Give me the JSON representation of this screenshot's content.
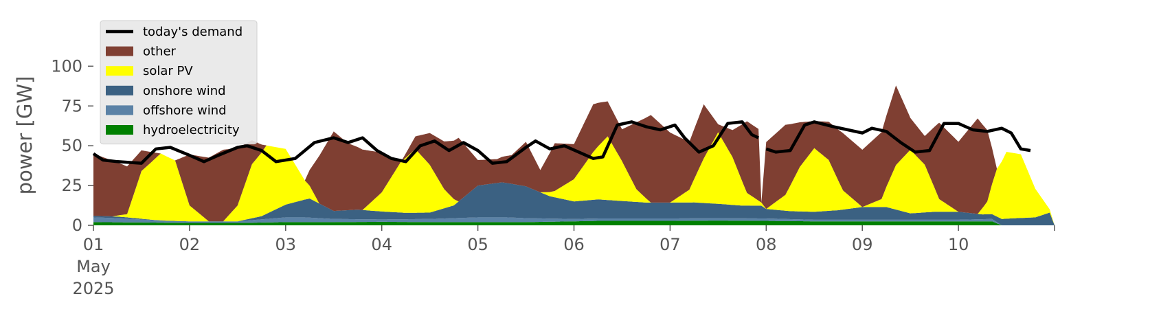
{
  "chart_data": {
    "type": "area",
    "title": "",
    "xlabel": "",
    "ylabel": "power [GW]",
    "xlim": [
      0,
      10
    ],
    "ylim": [
      0,
      120
    ],
    "x_ticks": [
      0,
      1,
      2,
      3,
      4,
      5,
      6,
      7,
      8,
      9,
      10
    ],
    "x_tick_labels": [
      "01",
      "02",
      "03",
      "04",
      "05",
      "06",
      "07",
      "08",
      "09",
      "10",
      ""
    ],
    "x_tick_sublabels": [
      "May",
      "2025"
    ],
    "y_ticks": [
      0,
      25,
      50,
      75,
      100
    ],
    "y_tick_labels": [
      "0",
      "25",
      "50",
      "75",
      "100"
    ],
    "grid": false,
    "legend_position": "top-left",
    "x_unit": "days since 2025-05-01 00:00",
    "stacking_order": [
      "hydroelectricity",
      "offshore wind",
      "onshore wind",
      "solar PV",
      "other"
    ],
    "series": [
      {
        "name": "hydroelectricity",
        "color": "#008000",
        "x": [
          0,
          0.5,
          1,
          1.5,
          2,
          2.5,
          3,
          3.5,
          4,
          4.5,
          5,
          5.25,
          5.5,
          6,
          6.5,
          7,
          7.5,
          8,
          8.5,
          9,
          9.35,
          9.45,
          10
        ],
        "values": [
          2,
          1.8,
          1.5,
          1.5,
          2,
          2,
          2.2,
          2,
          2,
          2,
          2.5,
          2.8,
          2.8,
          2.8,
          3,
          2.8,
          2.5,
          2.5,
          2.5,
          2.5,
          2.5,
          0,
          0
        ]
      },
      {
        "name": "offshore wind",
        "color": "#5b82a6",
        "x": [
          0,
          0.3,
          0.6,
          1,
          1.5,
          2,
          2.2,
          2.5,
          3,
          3.5,
          4,
          4.3,
          4.5,
          5,
          5.5,
          6,
          6.5,
          7,
          7.5,
          8,
          8.3,
          8.6,
          9,
          9.35,
          9.45,
          10
        ],
        "values": [
          3,
          2.5,
          1.5,
          1,
          1,
          3,
          3,
          2,
          1.5,
          2,
          3,
          3,
          2.5,
          1.5,
          1.5,
          1.5,
          1.5,
          1.5,
          1,
          1,
          1,
          1,
          1,
          1.5,
          0,
          0
        ]
      },
      {
        "name": "onshore wind",
        "color": "#3b6182",
        "x": [
          0,
          0.25,
          0.5,
          0.75,
          1,
          1.25,
          1.5,
          1.75,
          2,
          2.25,
          2.5,
          2.75,
          3,
          3.25,
          3.5,
          3.75,
          4,
          4.25,
          4.5,
          4.75,
          5,
          5.25,
          5.5,
          5.75,
          6,
          6.25,
          6.5,
          6.75,
          6.95,
          7,
          7.25,
          7.5,
          7.75,
          8,
          8.25,
          8.5,
          8.75,
          9,
          9.25,
          9.35,
          9.45,
          9.6,
          9.8,
          9.95,
          10
        ],
        "values": [
          1,
          1,
          0.5,
          0,
          0,
          0,
          0,
          2,
          8,
          12,
          5,
          6,
          5,
          4,
          4,
          8,
          20,
          22,
          20,
          14,
          11,
          12,
          11,
          10,
          10,
          10,
          9,
          8,
          8,
          6,
          5,
          5,
          6,
          8,
          8,
          4,
          5,
          5,
          3,
          3,
          4,
          4.5,
          5,
          8,
          0
        ]
      },
      {
        "name": "solar PV",
        "color": "#ffff00",
        "x": [
          0,
          0.2,
          0.35,
          0.5,
          0.7,
          0.85,
          1,
          1.2,
          1.35,
          1.5,
          1.65,
          1.8,
          2,
          2.2,
          2.35,
          2.5,
          2.65,
          2.8,
          3,
          3.2,
          3.35,
          3.5,
          3.65,
          3.8,
          4,
          4.2,
          4.35,
          4.5,
          4.65,
          4.8,
          5,
          5.2,
          5.35,
          5.5,
          5.65,
          5.8,
          6,
          6.2,
          6.35,
          6.5,
          6.65,
          6.8,
          7,
          7.2,
          7.35,
          7.5,
          7.65,
          7.8,
          8,
          8.2,
          8.35,
          8.5,
          8.65,
          8.8,
          9,
          9.2,
          9.3,
          9.4,
          9.5,
          9.65,
          9.8,
          9.95,
          10
        ],
        "values": [
          0,
          0,
          2,
          30,
          42,
          38,
          10,
          0,
          0,
          10,
          34,
          43,
          35,
          12,
          0,
          0,
          0,
          0,
          12,
          32,
          40,
          30,
          12,
          0,
          0,
          0,
          0,
          0,
          0,
          4,
          14,
          30,
          40,
          25,
          8,
          0,
          0,
          8,
          28,
          45,
          30,
          8,
          0,
          10,
          28,
          40,
          32,
          12,
          0,
          5,
          28,
          40,
          30,
          8,
          0,
          0,
          8,
          30,
          42,
          40,
          18,
          2,
          0
        ]
      },
      {
        "name": "other",
        "color": "#7f3f32",
        "x": [
          0,
          0.2,
          0.35,
          0.5,
          0.7,
          0.85,
          1,
          1.2,
          1.35,
          1.5,
          1.65,
          1.8,
          2,
          2.2,
          2.35,
          2.5,
          2.65,
          2.8,
          3,
          3.2,
          3.35,
          3.5,
          3.65,
          3.8,
          4,
          4.2,
          4.35,
          4.5,
          4.65,
          4.8,
          5,
          5.2,
          5.35,
          5.5,
          5.65,
          5.8,
          6,
          6.2,
          6.35,
          6.5,
          6.65,
          6.8,
          6.92,
          6.95,
          7,
          7.2,
          7.35,
          7.5,
          7.65,
          7.8,
          8,
          8.2,
          8.35,
          8.5,
          8.65,
          8.8,
          9,
          9.2,
          9.3,
          9.4,
          9.5,
          9.65,
          9.8,
          9.95,
          10
        ],
        "values": [
          39,
          35,
          30,
          13,
          0,
          0,
          32,
          40,
          45,
          36,
          15,
          0,
          0,
          0,
          30,
          50,
          42,
          38,
          25,
          0,
          8,
          20,
          30,
          40,
          16,
          15,
          18,
          28,
          14,
          30,
          22,
          30,
          22,
          20,
          42,
          55,
          44,
          30,
          34,
          5,
          17,
          45,
          45,
          0,
          42,
          44,
          28,
          17,
          24,
          36,
          36,
          42,
          50,
          20,
          18,
          48,
          44,
          60,
          45,
          0,
          0,
          0,
          0,
          0,
          0
        ]
      }
    ],
    "demand": {
      "name": "today's demand",
      "color": "#000000",
      "segments": [
        {
          "x": [
            0,
            0.1,
            0.25,
            0.5,
            0.65,
            0.8,
            1,
            1.15,
            1.3,
            1.5,
            1.6,
            1.75,
            1.9,
            2.1,
            2.3,
            2.5,
            2.65,
            2.8,
            2.95,
            3.1,
            3.25,
            3.4,
            3.55,
            3.7,
            3.85,
            4,
            4.15,
            4.3,
            4.5,
            4.6,
            4.75,
            4.9,
            5.05,
            5.2,
            5.3,
            5.45,
            5.6,
            5.75,
            5.9,
            6.05,
            6.15,
            6.3,
            6.45,
            6.6,
            6.75,
            6.85,
            6.92
          ],
          "values": [
            45,
            41,
            40,
            39,
            48,
            49,
            44,
            40,
            44,
            49,
            50,
            47,
            40,
            42,
            52,
            55,
            52,
            55,
            47,
            42,
            40,
            50,
            53,
            47,
            52,
            47,
            39,
            40,
            49,
            53,
            48,
            50,
            46,
            42,
            43,
            63,
            65,
            62,
            60,
            63,
            55,
            46,
            50,
            64,
            65,
            57,
            55
          ]
        },
        {
          "x": [
            7,
            7.1,
            7.25,
            7.4,
            7.5,
            7.7,
            7.85,
            8,
            8.1,
            8.25,
            8.4,
            8.55,
            8.7,
            8.85,
            9,
            9.15,
            9.3,
            9.45,
            9.55,
            9.65,
            9.75
          ],
          "values": [
            48,
            46,
            47,
            63,
            65,
            62,
            60,
            58,
            61,
            59,
            52,
            46,
            47,
            64,
            64,
            60,
            59,
            61,
            58,
            48,
            47
          ]
        }
      ]
    }
  }
}
